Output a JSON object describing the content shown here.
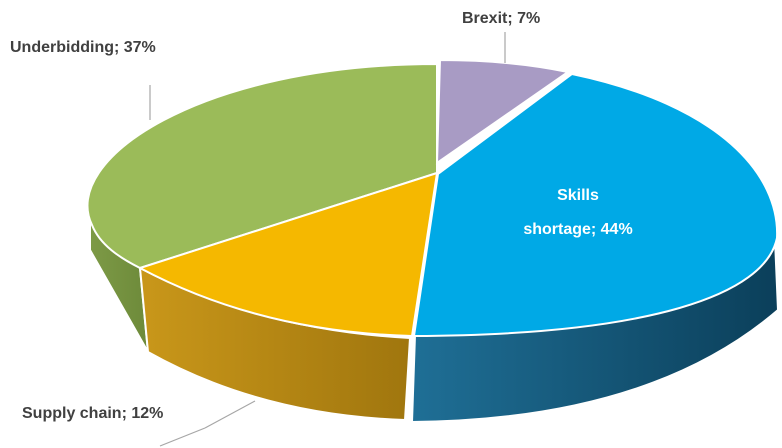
{
  "chart_data": {
    "type": "pie",
    "style": "3d-exploded",
    "slices": [
      {
        "name": "Brexit",
        "value": 7,
        "label": "Brexit; 7%",
        "color": "#A89BC4"
      },
      {
        "name": "Skills shortage",
        "value": 44,
        "label_lines": [
          "Skills",
          "shortage; 44%"
        ],
        "color": "#00A9E6"
      },
      {
        "name": "Supply chain",
        "value": 12,
        "label": "Supply chain; 12%",
        "color": "#F5B800"
      },
      {
        "name": "Underbidding",
        "value": 37,
        "label": "Underbidding; 37%",
        "color": "#9BBB59"
      }
    ],
    "legend": "none"
  }
}
